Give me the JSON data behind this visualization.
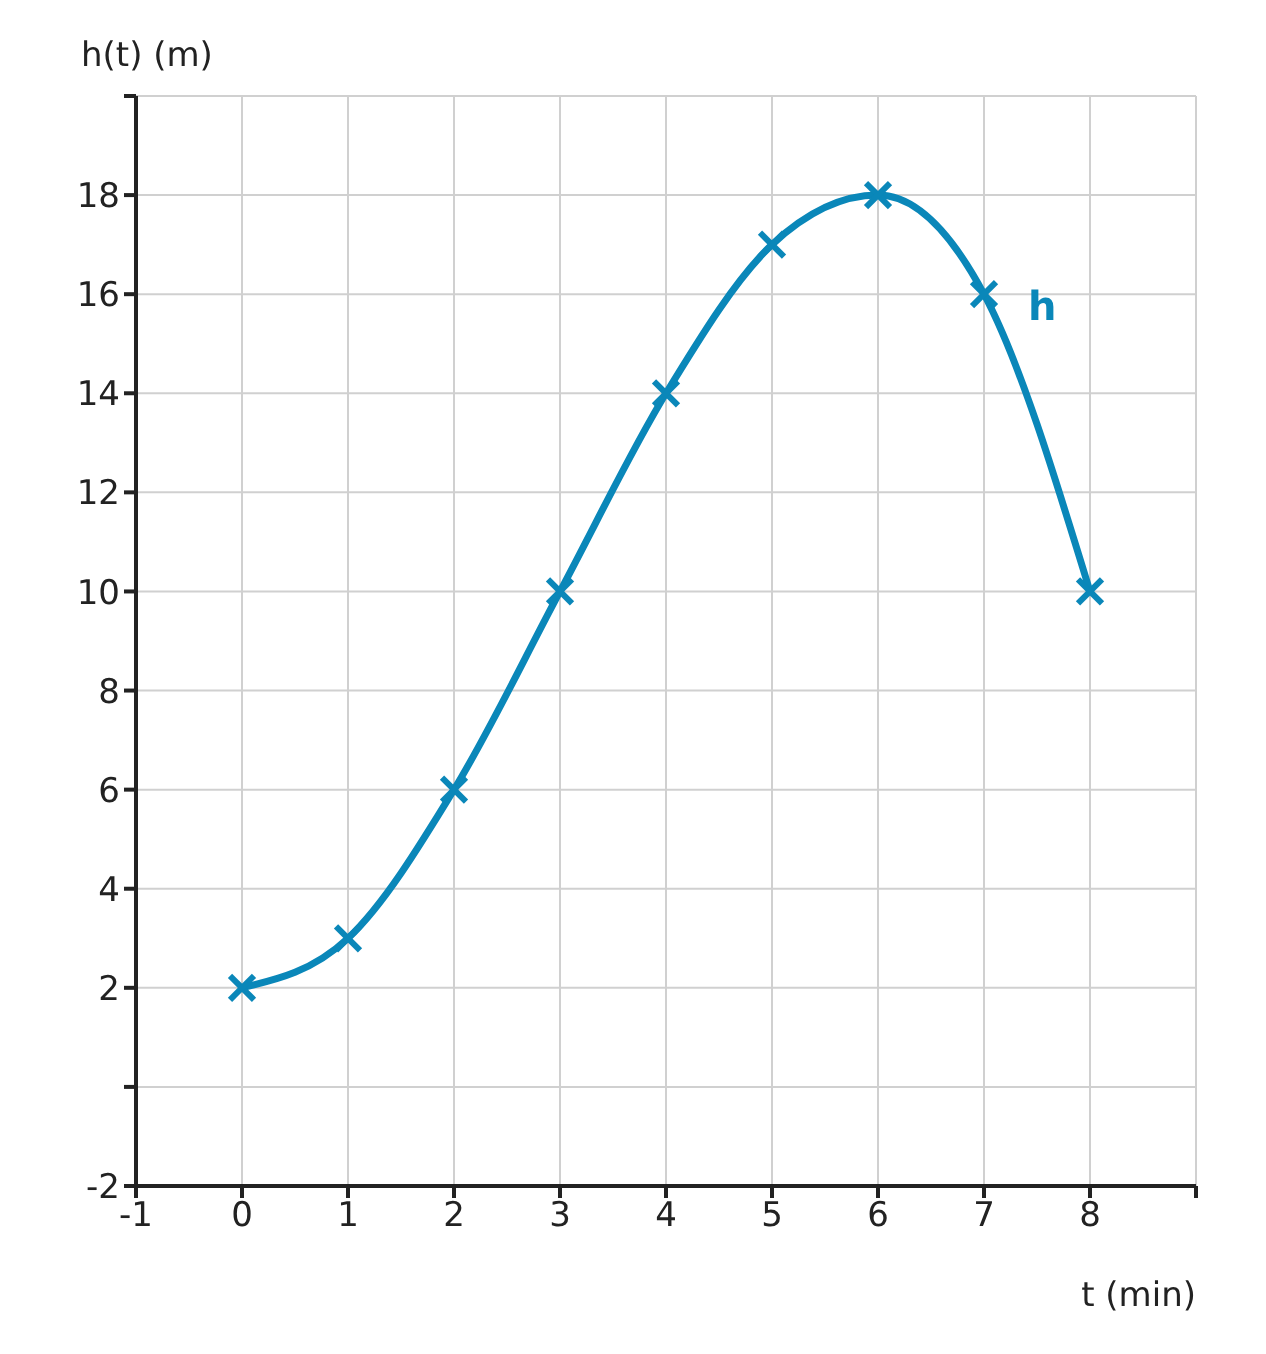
{
  "chart_data": {
    "type": "line",
    "xlabel": "t (min)",
    "ylabel": "h(t) (m)",
    "xlim": [
      -1,
      9
    ],
    "ylim": [
      -2,
      20
    ],
    "xticks": [
      -1,
      0,
      1,
      2,
      3,
      4,
      5,
      6,
      7,
      8,
      {
        "value": 9,
        "label": null
      }
    ],
    "yticks": [
      -2,
      {
        "value": 0,
        "label": null
      },
      2,
      4,
      6,
      8,
      10,
      12,
      14,
      16,
      18,
      {
        "value": 20,
        "label": null
      }
    ],
    "grid": true,
    "line_style": "solid",
    "series": [
      {
        "name": "h",
        "color": "#0a87b9",
        "marker": "cross",
        "x": [
          0,
          1,
          2,
          3,
          4,
          5,
          6,
          7,
          8
        ],
        "values": [
          2,
          3,
          6,
          10,
          14,
          17,
          18,
          16,
          10
        ]
      }
    ]
  }
}
